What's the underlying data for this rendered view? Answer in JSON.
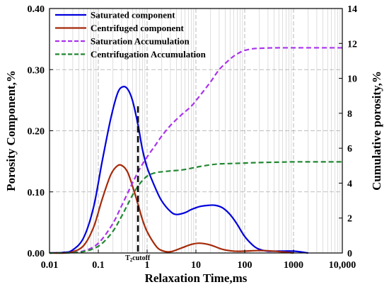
{
  "chart_data": {
    "type": "line",
    "xlabel": "Relaxation Time,ms",
    "ylabel": "Porosity Component,%",
    "y2label": "Cumulative porosity,%",
    "xscale": "log",
    "xlim": [
      0.01,
      10000
    ],
    "ylim": [
      0,
      0.4
    ],
    "y2lim": [
      0,
      14
    ],
    "grid": true,
    "legend_position": "top-left",
    "x_ticks": [
      {
        "value": 0.01,
        "label": "0.01"
      },
      {
        "value": 0.1,
        "label": "0.1"
      },
      {
        "value": 1,
        "label": "1"
      },
      {
        "value": 10,
        "label": "10"
      },
      {
        "value": 100,
        "label": "100"
      },
      {
        "value": 1000,
        "label": "1000"
      },
      {
        "value": 10000,
        "label": "10,000"
      }
    ],
    "y_ticks": [
      {
        "value": 0,
        "label": "0.00"
      },
      {
        "value": 0.1,
        "label": "0.10"
      },
      {
        "value": 0.2,
        "label": "0.20"
      },
      {
        "value": 0.3,
        "label": "0.30"
      },
      {
        "value": 0.4,
        "label": "0.40"
      }
    ],
    "y2_ticks": [
      {
        "value": 0,
        "label": "0"
      },
      {
        "value": 2,
        "label": "2"
      },
      {
        "value": 4,
        "label": "4"
      },
      {
        "value": 6,
        "label": "6"
      },
      {
        "value": 8,
        "label": "8"
      },
      {
        "value": 10,
        "label": "10"
      },
      {
        "value": 12,
        "label": "12"
      },
      {
        "value": 14,
        "label": "14"
      }
    ],
    "t2_cutoff": {
      "value": 0.65,
      "label_main": "T",
      "label_sub": "2",
      "label_rest": "cutoff"
    },
    "series": [
      {
        "name": "Saturated component",
        "axis": "left",
        "color": "#0000dd",
        "dash": "solid",
        "x": [
          0.01,
          0.02,
          0.03,
          0.05,
          0.08,
          0.12,
          0.18,
          0.25,
          0.32,
          0.4,
          0.5,
          0.65,
          0.8,
          1.0,
          1.5,
          2.0,
          3.0,
          4.0,
          6.0,
          8.0,
          12,
          18,
          25,
          35,
          50,
          70,
          100,
          150,
          200,
          300,
          500,
          1000,
          2000
        ],
        "y": [
          0,
          0.001,
          0.005,
          0.025,
          0.075,
          0.15,
          0.22,
          0.262,
          0.272,
          0.268,
          0.25,
          0.21,
          0.17,
          0.14,
          0.105,
          0.085,
          0.068,
          0.063,
          0.066,
          0.071,
          0.076,
          0.078,
          0.078,
          0.074,
          0.063,
          0.047,
          0.027,
          0.012,
          0.006,
          0.003,
          0.003,
          0.003,
          0
        ]
      },
      {
        "name": "Centrifuged component",
        "axis": "left",
        "color": "#a52a0a",
        "dash": "solid",
        "x": [
          0.01,
          0.02,
          0.03,
          0.05,
          0.08,
          0.12,
          0.18,
          0.25,
          0.32,
          0.4,
          0.5,
          0.65,
          0.8,
          1.0,
          1.5,
          2.0,
          3.0,
          5.0,
          8.0,
          12,
          20,
          35,
          60,
          100,
          200,
          400,
          1000
        ],
        "y": [
          0,
          0,
          0.002,
          0.012,
          0.042,
          0.088,
          0.128,
          0.143,
          0.142,
          0.132,
          0.11,
          0.08,
          0.055,
          0.035,
          0.012,
          0.004,
          0.002,
          0.008,
          0.014,
          0.016,
          0.013,
          0.006,
          0.003,
          0.003,
          0.004,
          0.003,
          0
        ]
      },
      {
        "name": "Saturation Accumulation",
        "axis": "right",
        "color": "#aa33ee",
        "dash": "dashed",
        "x": [
          0.01,
          0.03,
          0.05,
          0.08,
          0.12,
          0.2,
          0.3,
          0.5,
          0.7,
          1.0,
          1.5,
          2.0,
          3.0,
          5.0,
          8.0,
          12,
          20,
          30,
          50,
          70,
          100,
          150,
          200,
          300,
          500,
          1000,
          2000,
          5000,
          10000
        ],
        "y": [
          0,
          0.03,
          0.12,
          0.35,
          0.8,
          1.7,
          2.7,
          4.0,
          4.8,
          5.5,
          6.2,
          6.7,
          7.3,
          7.9,
          8.4,
          9.0,
          9.8,
          10.5,
          11.1,
          11.4,
          11.6,
          11.7,
          11.72,
          11.74,
          11.75,
          11.75,
          11.75,
          11.75,
          11.75
        ]
      },
      {
        "name": "Centrifugation Accumulation",
        "axis": "right",
        "color": "#228833",
        "dash": "dashed",
        "x": [
          0.01,
          0.03,
          0.05,
          0.08,
          0.12,
          0.2,
          0.3,
          0.5,
          0.7,
          1.0,
          1.5,
          2.0,
          3.0,
          5.0,
          8.0,
          12,
          20,
          30,
          50,
          100,
          200,
          500,
          1000,
          2000,
          5000,
          10000
        ],
        "y": [
          0,
          0.02,
          0.08,
          0.25,
          0.55,
          1.25,
          2.1,
          3.3,
          3.95,
          4.4,
          4.6,
          4.65,
          4.7,
          4.75,
          4.85,
          4.95,
          5.05,
          5.1,
          5.12,
          5.15,
          5.18,
          5.2,
          5.22,
          5.22,
          5.22,
          5.22
        ]
      }
    ]
  }
}
